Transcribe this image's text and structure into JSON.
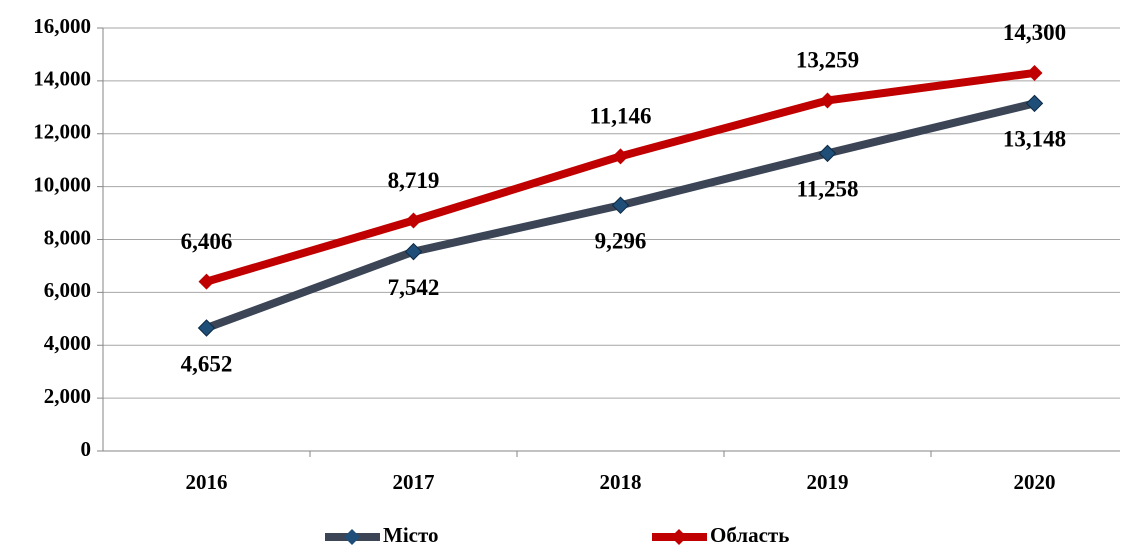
{
  "chart_data": {
    "type": "line",
    "categories": [
      "2016",
      "2017",
      "2018",
      "2019",
      "2020"
    ],
    "series": [
      {
        "name": "Місто",
        "color": "#3b4556",
        "marker_color": "#1f4e79",
        "values": [
          4652,
          7542,
          9296,
          11258,
          13148
        ],
        "value_labels": [
          "4,652",
          "7,542",
          "9,296",
          "11,258",
          "13,148"
        ]
      },
      {
        "name": "Область",
        "color": "#c00000",
        "marker_color": "#c00000",
        "values": [
          6406,
          8719,
          11146,
          13259,
          14300
        ],
        "value_labels": [
          "6,406",
          "8,719",
          "11,146",
          "13,259",
          "14,300"
        ]
      }
    ],
    "ylim": [
      0,
      16000
    ],
    "yticks": [
      0,
      {
        "value": 2000,
        "label": "2,000"
      },
      {
        "value": 4000,
        "label": "4,000"
      },
      {
        "value": 6000,
        "label": "6,000"
      },
      {
        "value": 8000,
        "label": "8,000"
      },
      {
        "value": 10000,
        "label": "10,000"
      },
      {
        "value": 12000,
        "label": "12,000"
      },
      {
        "value": 14000,
        "label": "14,000"
      },
      {
        "value": 16000,
        "label": "16,000"
      }
    ],
    "grid": true,
    "legend": "bottom"
  }
}
